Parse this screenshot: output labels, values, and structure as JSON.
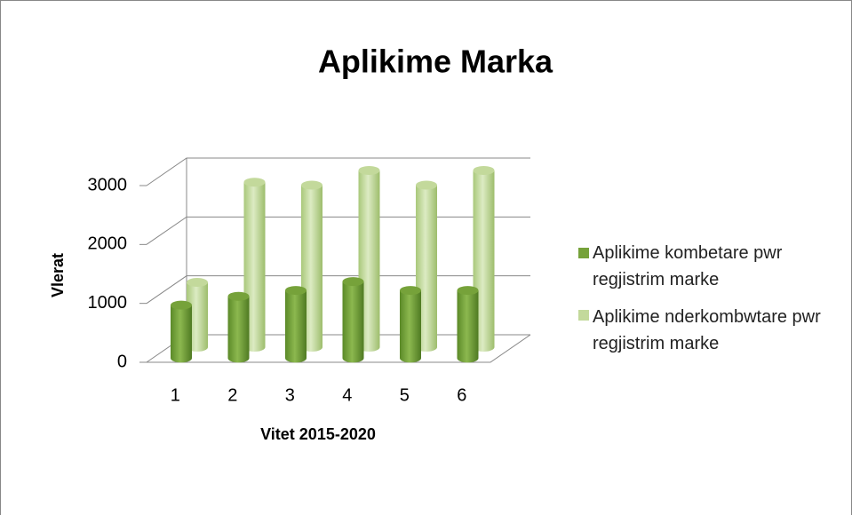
{
  "chart_data": {
    "type": "bar3d",
    "title": "Aplikime Marka",
    "x_label": "Vitet 2015-2020",
    "y_label": "Vlerat",
    "categories": [
      "1",
      "2",
      "3",
      "4",
      "5",
      "6"
    ],
    "series": [
      {
        "name": "Aplikime kombetare pwr regjistrim marke",
        "color": "#76a23a",
        "values": [
          900,
          1050,
          1150,
          1300,
          1150,
          1150
        ]
      },
      {
        "name": "Aplikime nderkombwtare pwr regjistrim marke",
        "color": "#c3d99b",
        "values": [
          1100,
          2800,
          2750,
          3000,
          2750,
          3000
        ]
      }
    ],
    "ylim": [
      0,
      3000
    ],
    "yticks": [
      0,
      1000,
      2000,
      3000
    ],
    "grid": true,
    "legend": "right"
  }
}
